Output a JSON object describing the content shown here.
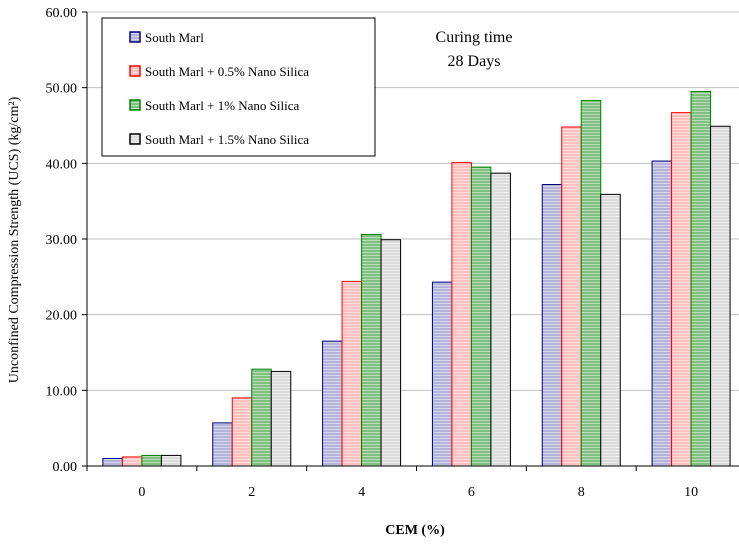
{
  "chart_data": {
    "type": "bar",
    "categories": [
      "0",
      "2",
      "4",
      "6",
      "8",
      "10"
    ],
    "series": [
      {
        "name": "South Marl",
        "values": [
          1.0,
          5.7,
          16.5,
          24.3,
          37.2,
          40.3
        ]
      },
      {
        "name": "South Marl + 0.5% Nano Silica",
        "values": [
          1.2,
          9.0,
          24.4,
          40.1,
          44.8,
          46.7
        ]
      },
      {
        "name": "South Marl + 1% Nano Silica",
        "values": [
          1.4,
          12.8,
          30.6,
          39.5,
          48.3,
          49.5
        ]
      },
      {
        "name": "South Marl + 1.5% Nano Silica",
        "values": [
          1.4,
          12.5,
          29.9,
          38.7,
          35.9,
          44.9
        ]
      }
    ],
    "xlabel": "CEM (%)",
    "ylabel": "Unconfined Compression Strength (UCS) (kg/cm²)",
    "ylim": [
      0,
      60
    ],
    "yticks": [
      "0.00",
      "10.00",
      "20.00",
      "30.00",
      "40.00",
      "50.00",
      "60.00"
    ],
    "annotation": [
      "Curing time",
      "28 Days"
    ],
    "grid": "horizontal",
    "legend_position": "top-left",
    "colors": {
      "fills": [
        "#b4b4d8",
        "#ffc0c0",
        "#80c080",
        "#dcdcdc"
      ],
      "strokes": [
        "#000080",
        "#ff0000",
        "#008000",
        "#000000"
      ],
      "grid": "#c0c0c0"
    }
  }
}
